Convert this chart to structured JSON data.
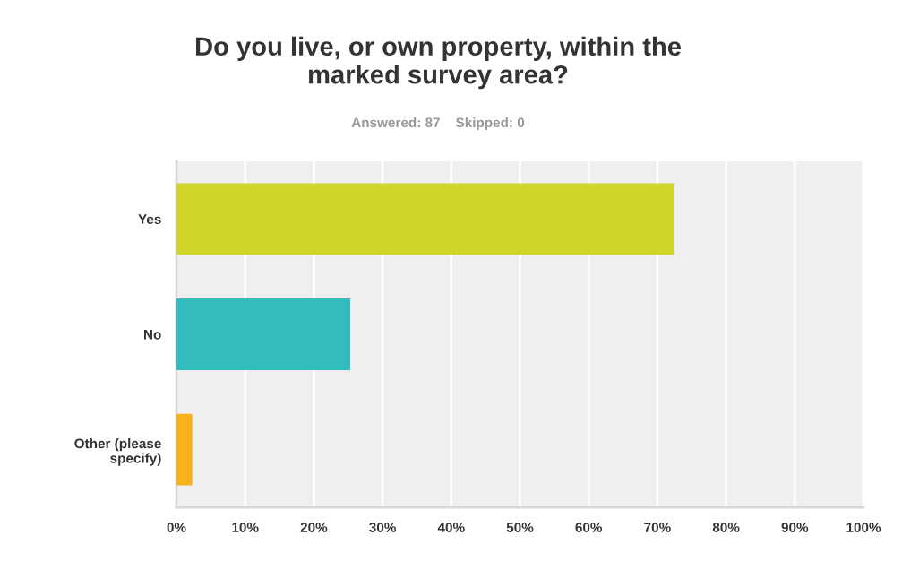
{
  "chart_data": {
    "type": "bar",
    "orientation": "horizontal",
    "title": "Do you live, or own property, within the\nmarked survey area?",
    "subtitle": "Answered: 87    Skipped: 0",
    "categories": [
      "Yes",
      "No",
      "Other (please\nspecify)"
    ],
    "values": [
      72.4,
      25.3,
      2.3
    ],
    "colors": [
      "#cfd52a",
      "#33bdbf",
      "#f7b11f"
    ],
    "xlim": [
      0,
      100
    ],
    "xticks": [
      {
        "value": 0,
        "label": "0%"
      },
      {
        "value": 10,
        "label": "10%"
      },
      {
        "value": 20,
        "label": "20%"
      },
      {
        "value": 30,
        "label": "30%"
      },
      {
        "value": 40,
        "label": "40%"
      },
      {
        "value": 50,
        "label": "50%"
      },
      {
        "value": 60,
        "label": "60%"
      },
      {
        "value": 70,
        "label": "70%"
      },
      {
        "value": 80,
        "label": "80%"
      },
      {
        "value": 90,
        "label": "90%"
      },
      {
        "value": 100,
        "label": "100%"
      }
    ],
    "grid": "x"
  }
}
